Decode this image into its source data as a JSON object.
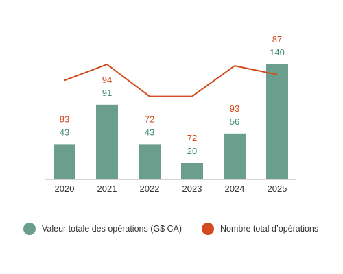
{
  "chart_data": {
    "type": "bar",
    "categories": [
      "2020",
      "2021",
      "2022",
      "2023",
      "2024",
      "2025"
    ],
    "series": [
      {
        "name": "Valeur totale des opérations (G$ CA)",
        "type": "bar",
        "color": "#6b9e8c",
        "values": [
          43,
          91,
          43,
          20,
          56,
          140
        ]
      },
      {
        "name": "Nombre total d’opérations",
        "type": "line",
        "color": "#d24a1d",
        "values": [
          83,
          94,
          72,
          72,
          93,
          87
        ]
      }
    ],
    "title": "",
    "xlabel": "",
    "ylabel": "",
    "grid": false,
    "legend_position": "bottom"
  },
  "legend": {
    "items": [
      {
        "label": "Valeur totale des opérations (G$ CA)",
        "color": "#6b9e8c",
        "icon": "circle"
      },
      {
        "label": "Nombre total d’opérations",
        "color": "#d24a1d",
        "icon": "circle"
      }
    ]
  }
}
